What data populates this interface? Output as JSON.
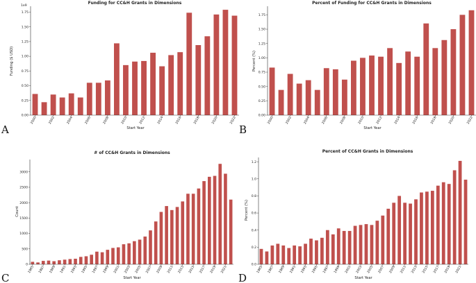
{
  "chart_data": [
    {
      "type": "bar",
      "panel": "A",
      "title": "Funding for CC&H Grants in Dimensions",
      "xlabel": "Start Year",
      "ylabel": "Funding ($ USD)",
      "exponent_label": "1e9",
      "ylim": [
        0,
        1.85
      ],
      "yticks": [
        0.0,
        0.25,
        0.5,
        0.75,
        1.0,
        1.25,
        1.5,
        1.75
      ],
      "ytick_labels": [
        "0.00",
        "0.25",
        "0.50",
        "0.75",
        "1.00",
        "1.25",
        "1.50",
        "1.75"
      ],
      "categories": [
        "2000",
        "2001",
        "2002",
        "2003",
        "2004",
        "2005",
        "2006",
        "2007",
        "2008",
        "2009",
        "2010",
        "2011",
        "2012",
        "2013",
        "2014",
        "2015",
        "2016",
        "2017",
        "2018",
        "2019",
        "2020",
        "2021",
        "2022"
      ],
      "xtick_labels": [
        "2000",
        "2002",
        "2004",
        "2006",
        "2008",
        "2010",
        "2012",
        "2014",
        "2016",
        "2018",
        "2020",
        "2022"
      ],
      "values": [
        0.36,
        0.22,
        0.35,
        0.3,
        0.37,
        0.3,
        0.55,
        0.55,
        0.59,
        1.22,
        0.85,
        0.91,
        0.92,
        1.06,
        0.83,
        1.02,
        1.07,
        1.74,
        1.19,
        1.34,
        1.71,
        1.79,
        1.69
      ]
    },
    {
      "type": "bar",
      "panel": "B",
      "title": "Percent of Funding for CC&H Grants in Dimensions",
      "xlabel": "Start Year",
      "ylabel": "Percent (%)",
      "ylim": [
        0,
        1.9
      ],
      "yticks": [
        0.0,
        0.25,
        0.5,
        0.75,
        1.0,
        1.25,
        1.5,
        1.75
      ],
      "ytick_labels": [
        "0.00",
        "0.25",
        "0.50",
        "0.75",
        "1.00",
        "1.25",
        "1.50",
        "1.75"
      ],
      "categories": [
        "2000",
        "2001",
        "2002",
        "2003",
        "2004",
        "2005",
        "2006",
        "2007",
        "2008",
        "2009",
        "2010",
        "2011",
        "2012",
        "2013",
        "2014",
        "2015",
        "2016",
        "2017",
        "2018",
        "2019",
        "2020",
        "2021",
        "2022"
      ],
      "xtick_labels": [
        "2000",
        "2002",
        "2004",
        "2006",
        "2008",
        "2010",
        "2012",
        "2014",
        "2016",
        "2018",
        "2020",
        "2022"
      ],
      "values": [
        0.83,
        0.44,
        0.72,
        0.55,
        0.61,
        0.44,
        0.82,
        0.8,
        0.62,
        0.95,
        1.0,
        1.04,
        1.02,
        1.17,
        0.91,
        1.11,
        1.02,
        1.6,
        1.17,
        1.31,
        1.5,
        1.75,
        1.83
      ]
    },
    {
      "type": "bar",
      "panel": "C",
      "title": "# of CC&H Grants in Dimensions",
      "xlabel": "Start Year",
      "ylabel": "Count",
      "ylim": [
        0,
        3400
      ],
      "yticks": [
        0,
        500,
        1000,
        1500,
        2000,
        2500,
        3000
      ],
      "ytick_labels": [
        "0",
        "500",
        "1000",
        "1500",
        "2000",
        "2500",
        "3000"
      ],
      "categories": [
        "1985",
        "1986",
        "1987",
        "1988",
        "1989",
        "1990",
        "1991",
        "1992",
        "1993",
        "1994",
        "1995",
        "1996",
        "1997",
        "1998",
        "1999",
        "2000",
        "2001",
        "2002",
        "2003",
        "2004",
        "2005",
        "2006",
        "2007",
        "2008",
        "2009",
        "2010",
        "2011",
        "2012",
        "2013",
        "2014",
        "2015",
        "2016",
        "2017",
        "2018",
        "2019",
        "2020",
        "2021",
        "2022"
      ],
      "xtick_labels": [
        "1985",
        "1987",
        "1989",
        "1991",
        "1993",
        "1995",
        "1997",
        "1999",
        "2001",
        "2003",
        "2005",
        "2007",
        "2009",
        "2011",
        "2013",
        "2015",
        "2017",
        "2019",
        "2021"
      ],
      "values": [
        80,
        60,
        110,
        120,
        100,
        130,
        150,
        170,
        180,
        240,
        260,
        310,
        410,
        390,
        470,
        530,
        550,
        650,
        680,
        750,
        800,
        900,
        1100,
        1390,
        1700,
        1890,
        1760,
        1860,
        2040,
        2290,
        2290,
        2460,
        2700,
        2840,
        2870,
        3260,
        2940,
        2100
      ]
    },
    {
      "type": "bar",
      "panel": "D",
      "title": "Percent of CC&H Grants in Dimensions",
      "xlabel": "Start Year",
      "ylabel": "Percent (%)",
      "ylim": [
        0,
        1.25
      ],
      "yticks": [
        0.0,
        0.2,
        0.4,
        0.6,
        0.8,
        1.0,
        1.2
      ],
      "ytick_labels": [
        "0.0",
        "0.2",
        "0.4",
        "0.6",
        "0.8",
        "1.0",
        "1.2"
      ],
      "categories": [
        "1985",
        "1986",
        "1987",
        "1988",
        "1989",
        "1990",
        "1991",
        "1992",
        "1993",
        "1994",
        "1995",
        "1996",
        "1997",
        "1998",
        "1999",
        "2000",
        "2001",
        "2002",
        "2003",
        "2004",
        "2005",
        "2006",
        "2007",
        "2008",
        "2009",
        "2010",
        "2011",
        "2012",
        "2013",
        "2014",
        "2015",
        "2016",
        "2017",
        "2018",
        "2019",
        "2020",
        "2021",
        "2022"
      ],
      "xtick_labels": [
        "1985",
        "1987",
        "1989",
        "1991",
        "1993",
        "1995",
        "1997",
        "1999",
        "2001",
        "2003",
        "2005",
        "2007",
        "2009",
        "2011",
        "2013",
        "2015",
        "2017",
        "2019",
        "2021"
      ],
      "values": [
        0.18,
        0.15,
        0.22,
        0.24,
        0.22,
        0.19,
        0.22,
        0.21,
        0.24,
        0.3,
        0.28,
        0.31,
        0.4,
        0.35,
        0.42,
        0.39,
        0.39,
        0.45,
        0.46,
        0.47,
        0.46,
        0.51,
        0.57,
        0.65,
        0.72,
        0.8,
        0.72,
        0.71,
        0.76,
        0.84,
        0.85,
        0.86,
        0.92,
        0.96,
        0.94,
        1.1,
        1.21,
        0.99
      ]
    }
  ],
  "bar_color": "#c0504d"
}
